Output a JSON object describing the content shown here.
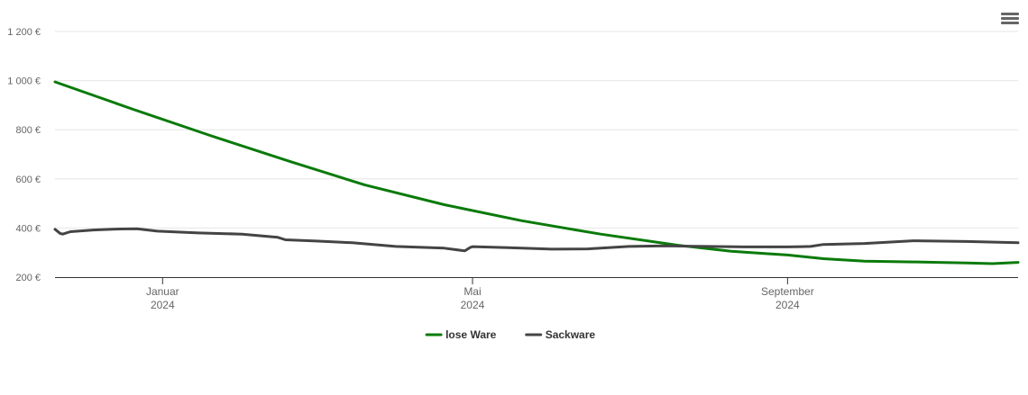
{
  "chart_data": {
    "type": "line",
    "x_axis": {
      "type": "date",
      "min": "2023-11-20",
      "max": "2024-11-30",
      "ticks": [
        {
          "date": "2024-01-01",
          "label": "Januar",
          "sublabel": "2024"
        },
        {
          "date": "2024-05-01",
          "label": "Mai",
          "sublabel": "2024"
        },
        {
          "date": "2024-09-01",
          "label": "September",
          "sublabel": "2024"
        }
      ]
    },
    "y_axis": {
      "min": 200,
      "max": 1200,
      "ticks": [
        {
          "value": 200,
          "label": "200 €"
        },
        {
          "value": 400,
          "label": "400 €"
        },
        {
          "value": 600,
          "label": "600 €"
        },
        {
          "value": 800,
          "label": "800 €"
        },
        {
          "value": 1000,
          "label": "1 000 €"
        },
        {
          "value": 1200,
          "label": "1 200 €"
        }
      ],
      "grid": true
    },
    "legend_position": "bottom-center",
    "series": [
      {
        "name": "lose Ware",
        "color": "#0a7a0a",
        "points": [
          [
            "2023-11-20",
            995
          ],
          [
            "2023-12-20",
            885
          ],
          [
            "2024-01-20",
            775
          ],
          [
            "2024-02-20",
            670
          ],
          [
            "2024-03-20",
            575
          ],
          [
            "2024-04-20",
            495
          ],
          [
            "2024-05-20",
            430
          ],
          [
            "2024-06-20",
            375
          ],
          [
            "2024-07-20",
            330
          ],
          [
            "2024-08-10",
            305
          ],
          [
            "2024-08-25",
            295
          ],
          [
            "2024-09-01",
            290
          ],
          [
            "2024-09-15",
            275
          ],
          [
            "2024-10-01",
            265
          ],
          [
            "2024-10-20",
            262
          ],
          [
            "2024-11-10",
            258
          ],
          [
            "2024-11-20",
            255
          ],
          [
            "2024-11-30",
            260
          ]
        ]
      },
      {
        "name": "Sackware",
        "color": "#444444",
        "points": [
          [
            "2023-11-20",
            395
          ],
          [
            "2023-11-22",
            378
          ],
          [
            "2023-11-23",
            375
          ],
          [
            "2023-11-26",
            385
          ],
          [
            "2023-12-05",
            392
          ],
          [
            "2023-12-15",
            396
          ],
          [
            "2023-12-22",
            397
          ],
          [
            "2023-12-30",
            387
          ],
          [
            "2024-01-15",
            380
          ],
          [
            "2024-02-01",
            375
          ],
          [
            "2024-02-15",
            362
          ],
          [
            "2024-02-18",
            352
          ],
          [
            "2024-03-01",
            347
          ],
          [
            "2024-03-15",
            340
          ],
          [
            "2024-04-01",
            325
          ],
          [
            "2024-04-20",
            318
          ],
          [
            "2024-04-28",
            307
          ],
          [
            "2024-04-30",
            320
          ],
          [
            "2024-05-01",
            324
          ],
          [
            "2024-05-15",
            320
          ],
          [
            "2024-06-01",
            314
          ],
          [
            "2024-06-15",
            315
          ],
          [
            "2024-07-01",
            325
          ],
          [
            "2024-07-15",
            327
          ],
          [
            "2024-08-01",
            325
          ],
          [
            "2024-08-15",
            323
          ],
          [
            "2024-09-01",
            323
          ],
          [
            "2024-09-10",
            325
          ],
          [
            "2024-09-15",
            333
          ],
          [
            "2024-10-01",
            337
          ],
          [
            "2024-10-20",
            348
          ],
          [
            "2024-11-10",
            345
          ],
          [
            "2024-11-30",
            340
          ]
        ]
      }
    ]
  }
}
